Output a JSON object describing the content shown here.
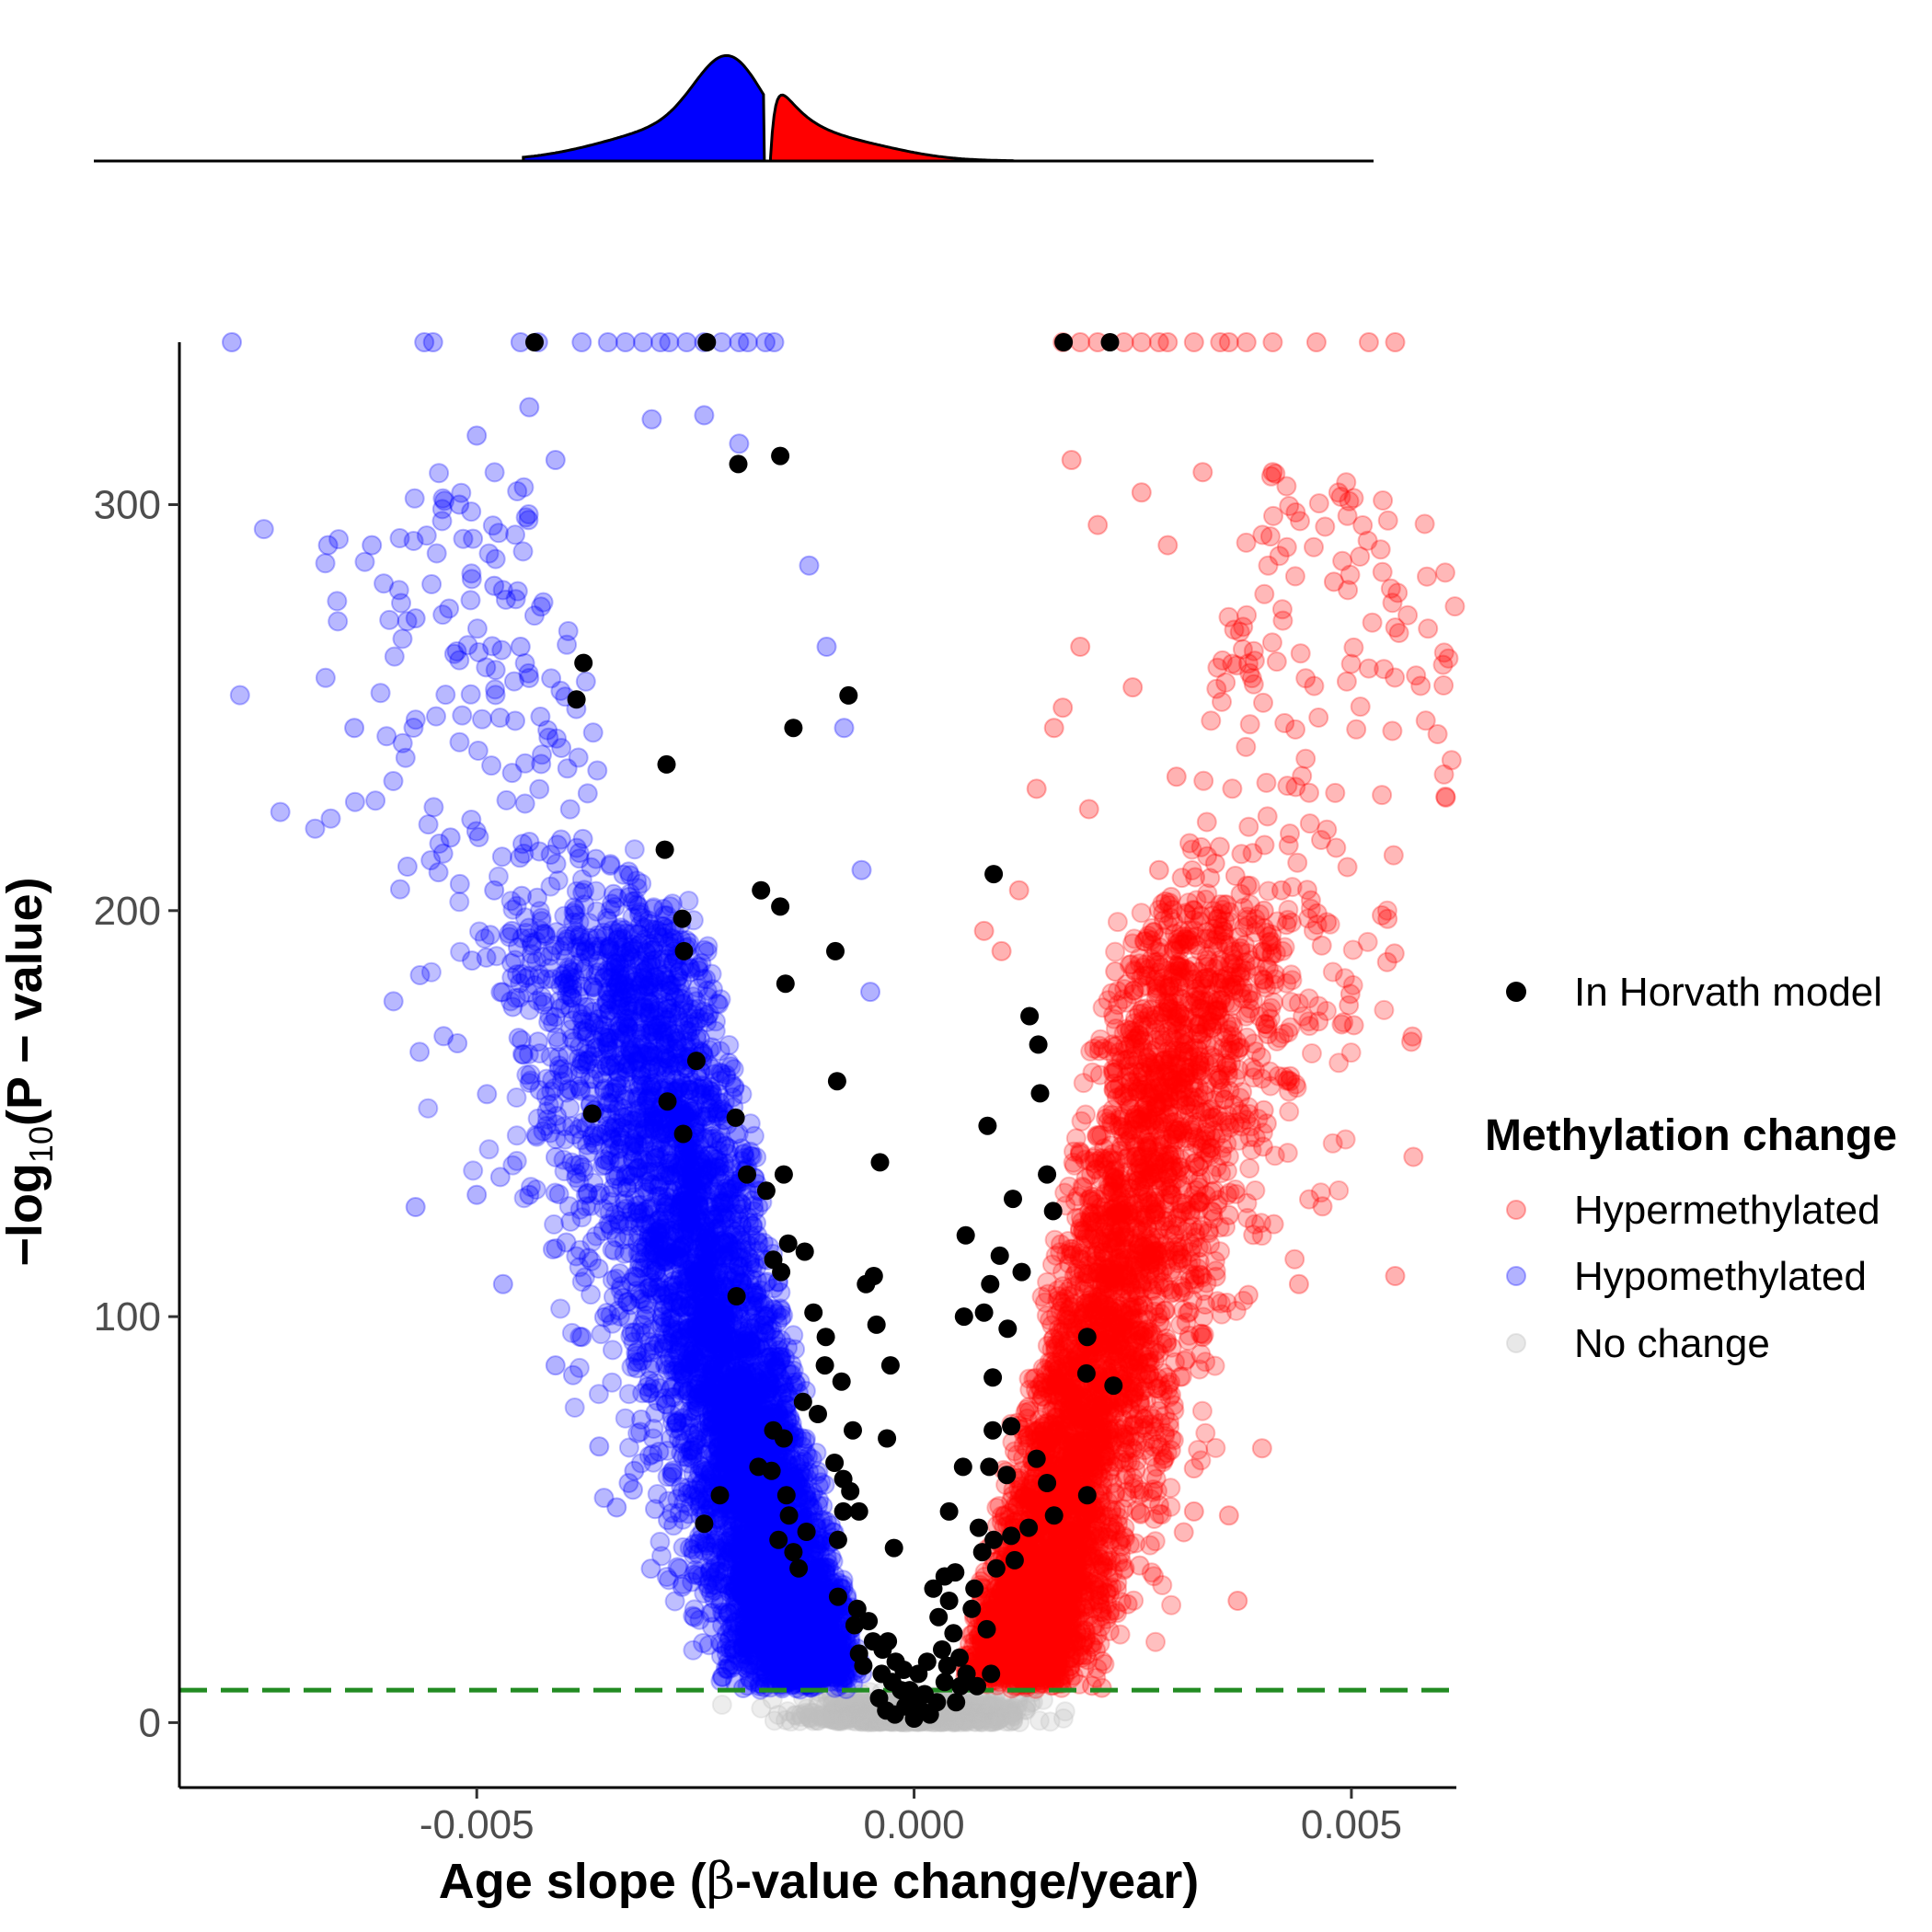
{
  "chart_data": {
    "type": "scatter",
    "subtype": "volcano",
    "xlabel_prefix": "Age slope (",
    "xlabel_symbol": "β",
    "xlabel_suffix": "-value change/year)",
    "ylabel_prefix": "−log",
    "ylabel_sub": "10",
    "ylabel_suffix": "(P − value)",
    "xlim": [
      -0.0084,
      0.0062
    ],
    "ylim": [
      -16,
      340
    ],
    "x_ticks": [
      -0.005,
      0.0,
      0.005
    ],
    "x_tick_labels": [
      "-0.005",
      "0.000",
      "0.005"
    ],
    "y_ticks": [
      0,
      100,
      200,
      300
    ],
    "y_tick_labels": [
      "0",
      "100",
      "200",
      "300"
    ],
    "threshold_line": {
      "y": 8,
      "color": "#228B22",
      "style": "dashed"
    },
    "y_cap": 340,
    "marginal_density": {
      "position": "top",
      "fills": {
        "Hypomethylated": "#0000FF",
        "Hypermethylated": "#FF0000"
      }
    },
    "series": [
      {
        "name": "Hypermethylated",
        "color": "#FF0000",
        "alpha": 0.3,
        "sample_points": [
          [
            0.0026,
            303
          ],
          [
            0.0018,
            311
          ],
          [
            0.0041,
            308
          ],
          [
            0.0033,
            308
          ],
          [
            0.0048,
            281
          ],
          [
            0.0029,
            290
          ],
          [
            0.0021,
            295
          ],
          [
            0.0019,
            265
          ],
          [
            0.003,
            233
          ],
          [
            0.0025,
            255
          ],
          [
            0.0017,
            250
          ],
          [
            0.0014,
            230
          ],
          [
            0.0028,
            210
          ],
          [
            0.0032,
            200
          ],
          [
            0.0042,
            205
          ],
          [
            0.004,
            200
          ],
          [
            0.0043,
            158
          ],
          [
            0.0034,
            135
          ],
          [
            0.0036,
            125
          ],
          [
            0.0044,
            108
          ],
          [
            0.0055,
            110
          ],
          [
            0.0033,
            95
          ],
          [
            0.0036,
            51
          ],
          [
            0.0037,
            30
          ],
          [
            0.0032,
            52
          ],
          [
            0.001,
            190
          ],
          [
            0.0008,
            195
          ],
          [
            0.0012,
            205
          ],
          [
            0.0016,
            245
          ],
          [
            0.002,
            225
          ],
          [
            0.0023,
            185
          ]
        ]
      },
      {
        "name": "Hypomethylated",
        "color": "#0000FF",
        "alpha": 0.3,
        "sample_points": [
          [
            -0.0067,
            290
          ],
          [
            -0.0062,
            290
          ],
          [
            -0.0064,
            245
          ],
          [
            -0.0057,
            272
          ],
          [
            -0.0052,
            300
          ],
          [
            -0.005,
            317
          ],
          [
            -0.0044,
            324
          ],
          [
            -0.0041,
            311
          ],
          [
            -0.003,
            321
          ],
          [
            -0.0024,
            322
          ],
          [
            -0.002,
            315
          ],
          [
            -0.0057,
            127
          ],
          [
            -0.005,
            130
          ],
          [
            -0.0044,
            130
          ],
          [
            -0.0047,
            108
          ],
          [
            -0.0041,
            88
          ],
          [
            -0.0038,
            95
          ],
          [
            -0.0036,
            68
          ],
          [
            -0.0034,
            53
          ],
          [
            -0.0032,
            62
          ],
          [
            -0.0045,
            265
          ],
          [
            -0.0048,
            280
          ],
          [
            -0.0053,
            218
          ],
          [
            -0.0048,
            205
          ],
          [
            -0.0046,
            195
          ],
          [
            -0.0012,
            285
          ],
          [
            -0.001,
            265
          ],
          [
            -0.0008,
            245
          ],
          [
            -0.0006,
            210
          ],
          [
            -0.0005,
            180
          ]
        ]
      },
      {
        "name": "No change",
        "color": "#BEBEBE",
        "alpha": 0.3,
        "sample_points": []
      },
      {
        "name": "In Horvath model",
        "color": "#000000",
        "alpha": 1.0,
        "points": [
          [
            -0.00434,
            340
          ],
          [
            -0.00237,
            340
          ],
          [
            0.00171,
            340
          ],
          [
            0.00224,
            340
          ],
          [
            -0.00201,
            310
          ],
          [
            -0.00153,
            312
          ],
          [
            -0.00378,
            261
          ],
          [
            -0.00386,
            252
          ],
          [
            -0.00075,
            253
          ],
          [
            -0.00138,
            245
          ],
          [
            -0.00283,
            236
          ],
          [
            -0.00285,
            215
          ],
          [
            -0.00175,
            205
          ],
          [
            -0.00153,
            201
          ],
          [
            -0.00265,
            198
          ],
          [
            -0.00263,
            190
          ],
          [
            -0.0009,
            190
          ],
          [
            -0.00147,
            182
          ],
          [
            0.00091,
            209
          ],
          [
            -0.00249,
            163
          ],
          [
            -0.00088,
            158
          ],
          [
            -0.00368,
            150
          ],
          [
            -0.00282,
            153
          ],
          [
            -0.00204,
            149
          ],
          [
            -0.00264,
            145
          ],
          [
            -0.00039,
            138
          ],
          [
            -0.00191,
            135
          ],
          [
            -0.00149,
            135
          ],
          [
            -0.00169,
            131
          ],
          [
            0.00132,
            174
          ],
          [
            0.00142,
            167
          ],
          [
            0.00144,
            155
          ],
          [
            0.00084,
            147
          ],
          [
            0.00152,
            135
          ],
          [
            0.00113,
            129
          ],
          [
            0.00159,
            126
          ],
          [
            0.00059,
            120
          ],
          [
            -0.00144,
            118
          ],
          [
            -0.00125,
            116
          ],
          [
            -0.00161,
            114
          ],
          [
            -0.00152,
            111
          ],
          [
            -0.00203,
            105
          ],
          [
            -0.00046,
            110
          ],
          [
            -0.00055,
            108
          ],
          [
            -0.00115,
            101
          ],
          [
            -0.00043,
            98
          ],
          [
            -0.00101,
            95
          ],
          [
            -0.00102,
            88
          ],
          [
            -0.00027,
            88
          ],
          [
            -0.00083,
            84
          ],
          [
            -0.00127,
            79
          ],
          [
            -0.0011,
            76
          ],
          [
            0.00098,
            115
          ],
          [
            0.00123,
            111
          ],
          [
            0.00087,
            108
          ],
          [
            0.00057,
            100
          ],
          [
            0.0008,
            101
          ],
          [
            0.00107,
            97
          ],
          [
            0.00198,
            95
          ],
          [
            0.00197,
            86
          ],
          [
            0.0009,
            85
          ],
          [
            0.00228,
            83
          ],
          [
            -0.00161,
            72
          ],
          [
            -0.00149,
            70
          ],
          [
            -0.0007,
            72
          ],
          [
            -0.00031,
            70
          ],
          [
            -0.00178,
            63
          ],
          [
            -0.00163,
            62
          ],
          [
            -0.00091,
            64
          ],
          [
            -0.00081,
            60
          ],
          [
            -0.00073,
            57
          ],
          [
            -0.00146,
            56
          ],
          [
            -0.00081,
            52
          ],
          [
            -0.00143,
            51
          ],
          [
            -0.00222,
            56
          ],
          [
            -0.0024,
            49
          ],
          [
            -0.00123,
            47
          ],
          [
            -0.00138,
            42
          ],
          [
            -0.00155,
            45
          ],
          [
            -0.00087,
            45
          ],
          [
            -0.00132,
            38
          ],
          [
            -0.00063,
            52
          ],
          [
            -0.00023,
            43
          ],
          [
            0.0009,
            72
          ],
          [
            0.00111,
            73
          ],
          [
            0.0014,
            65
          ],
          [
            0.00056,
            63
          ],
          [
            0.00086,
            63
          ],
          [
            0.00106,
            61
          ],
          [
            0.00152,
            59
          ],
          [
            0.00198,
            56
          ],
          [
            0.0016,
            51
          ],
          [
            0.00131,
            48
          ],
          [
            0.00074,
            48
          ],
          [
            0.00091,
            45
          ],
          [
            0.00111,
            46
          ],
          [
            0.0004,
            52
          ],
          [
            0.00078,
            42
          ],
          [
            0.00094,
            38
          ],
          [
            0.00115,
            40
          ],
          [
            0.00035,
            36
          ],
          [
            0.00069,
            33
          ],
          [
            -0.00087,
            31
          ],
          [
            -0.00065,
            28
          ],
          [
            -0.00068,
            24
          ],
          [
            -0.00052,
            25
          ],
          [
            -0.00047,
            20
          ],
          [
            -0.00063,
            17
          ],
          [
            -0.00036,
            18
          ],
          [
            -0.00021,
            15
          ],
          [
            -0.00037,
            12
          ],
          [
            -0.00025,
            10
          ],
          [
            -0.00015,
            8
          ],
          [
            -0.0004,
            6
          ],
          [
            -0.00032,
            3
          ],
          [
            -0.00022,
            2
          ],
          [
            -0.0001,
            4
          ],
          [
            0.0,
            1
          ],
          [
            8e-05,
            3
          ],
          [
            0.00018,
            2
          ],
          [
            0.00026,
            5
          ],
          [
            0.00012,
            7
          ],
          [
            5e-05,
            12
          ],
          [
            0.00015,
            15
          ],
          [
            0.00032,
            18
          ],
          [
            0.00045,
            22
          ],
          [
            0.00052,
            16
          ],
          [
            0.0006,
            12
          ],
          [
            0.00028,
            26
          ],
          [
            0.0004,
            30
          ],
          [
            0.00022,
            33
          ],
          [
            0.00083,
            23
          ],
          [
            0.00072,
            9
          ],
          [
            0.00048,
            5
          ],
          [
            0.00088,
            12
          ],
          [
            0.00035,
            10
          ],
          [
            0.00066,
            28
          ],
          [
            0.00047,
            37
          ],
          [
            -5e-05,
            8
          ],
          [
            -0.00012,
            13
          ],
          [
            2e-05,
            6
          ],
          [
            -0.0003,
            20
          ],
          [
            -0.00058,
            14
          ],
          [
            0.00038,
            14
          ],
          [
            0.00053,
            9
          ]
        ]
      }
    ],
    "legend": {
      "placement": "right",
      "horvath_label": "In Horvath model",
      "title": "Methylation change",
      "entries": [
        {
          "label": "Hypermethylated",
          "color": "#FF0000"
        },
        {
          "label": "Hypomethylated",
          "color": "#0000FF"
        },
        {
          "label": "No change",
          "color": "#BEBEBE"
        }
      ]
    }
  }
}
